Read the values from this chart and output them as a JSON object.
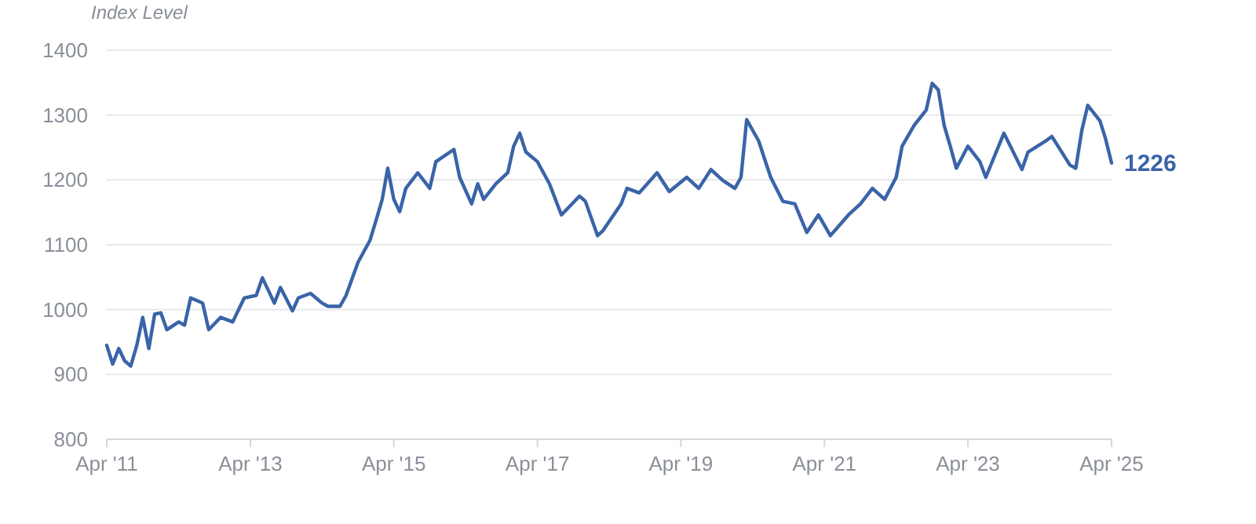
{
  "chart_data": {
    "type": "line",
    "ylabel": "Index Level",
    "grid": "y",
    "marker": "none",
    "line_style": "solid",
    "xlim": [
      "2011-04",
      "2025-04"
    ],
    "xticks": [
      {
        "value": "2011-04",
        "label": "Apr '11"
      },
      {
        "value": "2013-04",
        "label": "Apr '13"
      },
      {
        "value": "2015-04",
        "label": "Apr '15"
      },
      {
        "value": "2017-04",
        "label": "Apr '17"
      },
      {
        "value": "2019-04",
        "label": "Apr '19"
      },
      {
        "value": "2021-04",
        "label": "Apr '21"
      },
      {
        "value": "2023-04",
        "label": "Apr '23"
      },
      {
        "value": "2025-04",
        "label": "Apr '25"
      }
    ],
    "ylim": [
      800,
      1400
    ],
    "yticks": [
      800,
      900,
      1000,
      1100,
      1200,
      1300,
      1400
    ],
    "annotations": [
      {
        "text": "1226",
        "x": "2025-04",
        "y": 1226
      }
    ],
    "series": [
      {
        "color": "#3a64a8",
        "x": [
          "2011-04",
          "2011-05",
          "2011-06",
          "2011-07",
          "2011-08",
          "2011-09",
          "2011-10",
          "2011-11",
          "2011-12",
          "2012-01",
          "2012-02",
          "2012-04",
          "2012-05",
          "2012-06",
          "2012-08",
          "2012-09",
          "2012-11",
          "2013-01",
          "2013-03",
          "2013-05",
          "2013-06",
          "2013-08",
          "2013-09",
          "2013-11",
          "2013-12",
          "2014-02",
          "2014-04",
          "2014-05",
          "2014-07",
          "2014-08",
          "2014-10",
          "2014-12",
          "2015-01",
          "2015-02",
          "2015-03",
          "2015-04",
          "2015-05",
          "2015-06",
          "2015-08",
          "2015-10",
          "2015-11",
          "2016-02",
          "2016-03",
          "2016-05",
          "2016-06",
          "2016-07",
          "2016-09",
          "2016-11",
          "2016-12",
          "2017-01",
          "2017-02",
          "2017-04",
          "2017-06",
          "2017-08",
          "2017-11",
          "2017-12",
          "2018-02",
          "2018-03",
          "2018-06",
          "2018-07",
          "2018-09",
          "2018-12",
          "2019-02",
          "2019-05",
          "2019-07",
          "2019-09",
          "2019-11",
          "2020-01",
          "2020-02",
          "2020-03",
          "2020-05",
          "2020-07",
          "2020-09",
          "2020-11",
          "2021-01",
          "2021-03",
          "2021-05",
          "2021-08",
          "2021-10",
          "2021-12",
          "2022-02",
          "2022-04",
          "2022-05",
          "2022-07",
          "2022-09",
          "2022-10",
          "2022-11",
          "2022-12",
          "2023-01",
          "2023-02",
          "2023-04",
          "2023-06",
          "2023-07",
          "2023-10",
          "2024-01",
          "2024-02",
          "2024-05",
          "2024-06",
          "2024-09",
          "2024-10",
          "2024-11",
          "2024-12",
          "2025-02",
          "2025-03",
          "2025-04"
        ],
        "values": [
          945,
          916,
          940,
          921,
          913,
          945,
          988,
          940,
          993,
          995,
          969,
          981,
          976,
          1018,
          1010,
          969,
          988,
          981,
          1018,
          1022,
          1049,
          1010,
          1034,
          998,
          1018,
          1025,
          1010,
          1005,
          1005,
          1022,
          1073,
          1107,
          1138,
          1170,
          1218,
          1170,
          1151,
          1187,
          1211,
          1187,
          1228,
          1247,
          1204,
          1163,
          1194,
          1170,
          1194,
          1211,
          1252,
          1272,
          1243,
          1228,
          1194,
          1146,
          1175,
          1167,
          1114,
          1122,
          1163,
          1187,
          1180,
          1211,
          1182,
          1204,
          1187,
          1216,
          1199,
          1187,
          1204,
          1293,
          1260,
          1204,
          1167,
          1163,
          1119,
          1146,
          1114,
          1146,
          1163,
          1187,
          1170,
          1204,
          1252,
          1284,
          1308,
          1349,
          1339,
          1284,
          1252,
          1218,
          1252,
          1228,
          1204,
          1272,
          1216,
          1243,
          1260,
          1267,
          1223,
          1218,
          1277,
          1315,
          1291,
          1264,
          1226
        ]
      }
    ]
  }
}
